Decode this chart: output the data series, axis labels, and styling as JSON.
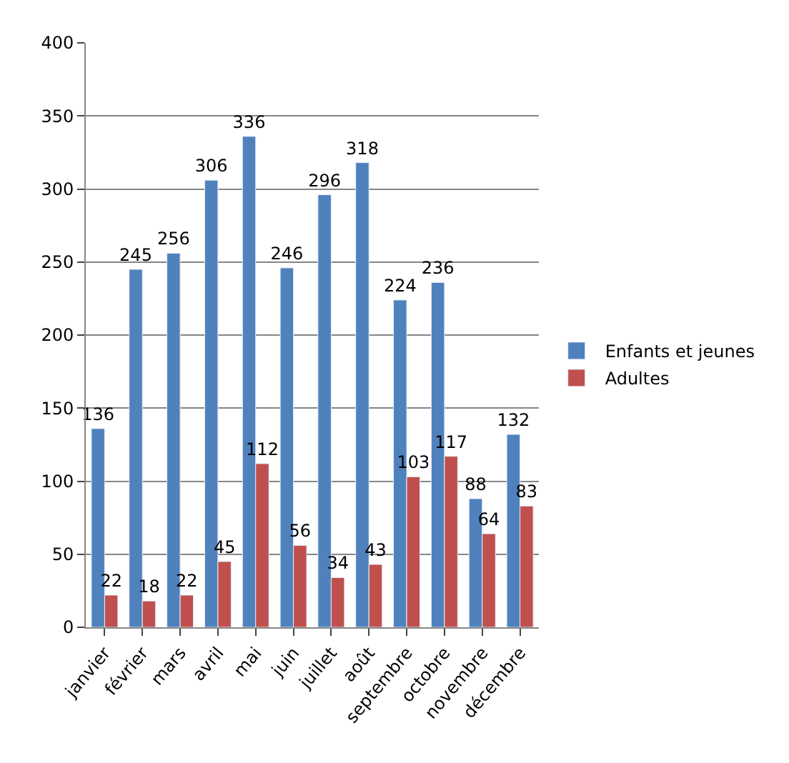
{
  "chart_data": {
    "type": "bar",
    "categories": [
      "janvier",
      "février",
      "mars",
      "avril",
      "mai",
      "juin",
      "juillet",
      "août",
      "septembre",
      "octobre",
      "novembre",
      "décembre"
    ],
    "series": [
      {
        "name": "Enfants et jeunes",
        "color": "#4f81bd",
        "values": [
          136,
          245,
          256,
          306,
          336,
          246,
          296,
          318,
          224,
          236,
          88,
          132
        ]
      },
      {
        "name": "Adultes",
        "color": "#c0504d",
        "values": [
          22,
          18,
          22,
          45,
          112,
          56,
          34,
          43,
          103,
          117,
          64,
          83
        ]
      }
    ],
    "ylim": [
      0,
      400
    ],
    "yticks": [
      0,
      50,
      100,
      150,
      200,
      250,
      300,
      350,
      400
    ],
    "grid": "y",
    "legend": "right",
    "data_labels": true
  }
}
